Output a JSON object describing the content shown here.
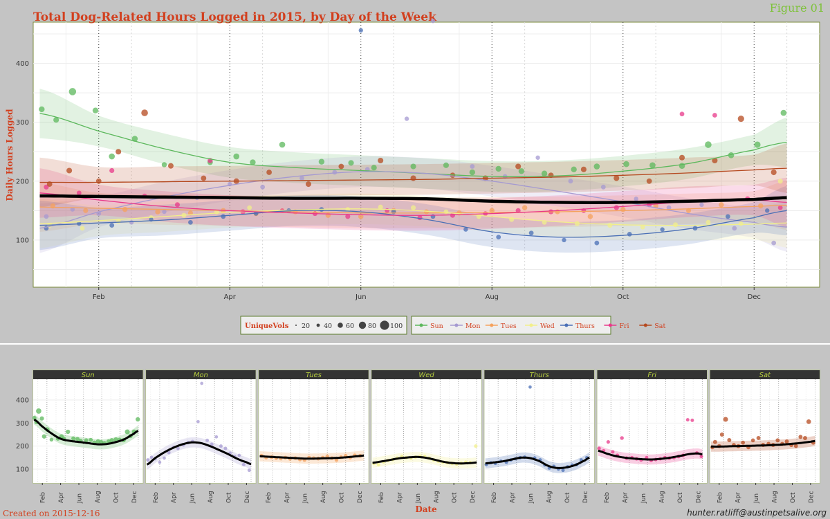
{
  "figure_label": "Figure 01",
  "footer": {
    "created": "Created on 2015-12-16",
    "contact": "hunter.ratliff@austinpetsalive.org"
  },
  "colors": {
    "page_bg": "#c4c4c4",
    "panel_bg": "#ffffff",
    "panel_border": "#7a8a3a",
    "title_red": "#d2401f",
    "figure_label_green": "#7ec23a",
    "strip_bg": "#333333",
    "strip_text": "#b5cc3e",
    "overall_line": "#000000"
  },
  "chart_data": [
    {
      "type": "scatter",
      "title": "Total Dog-Related Hours Logged in 2015, by Day of the Week",
      "ylabel": "Daily Hours Logged",
      "xlabel": "",
      "x_ticks": [
        "Feb",
        "Apr",
        "Jun",
        "Aug",
        "Oct",
        "Dec"
      ],
      "x_tick_values": [
        1.5,
        3.5,
        5.5,
        7.5,
        9.5,
        11.5
      ],
      "xlim": [
        0.5,
        12.5
      ],
      "y_ticks": [
        100,
        200,
        300,
        400
      ],
      "ylim": [
        20,
        470
      ],
      "grid": true,
      "size_legend": {
        "title": "UniqueVols",
        "entries": [
          "20",
          "40",
          "60",
          "80",
          "100"
        ]
      },
      "color_legend": {
        "placement": "bottom"
      },
      "series": [
        {
          "name": "Sun",
          "color": "#5cb85c",
          "x": [
            0.63,
            0.85,
            1.1,
            1.45,
            1.7,
            2.05,
            2.5,
            3.2,
            3.6,
            3.85,
            4.3,
            4.9,
            5.35,
            5.7,
            6.3,
            6.8,
            7.2,
            7.6,
            7.95,
            8.3,
            8.75,
            9.1,
            9.55,
            9.95,
            10.4,
            10.8,
            11.15,
            11.55,
            11.95
          ],
          "y": [
            322,
            304,
            352,
            320,
            242,
            272,
            228,
            232,
            242,
            232,
            262,
            233,
            231,
            223,
            225,
            227,
            215,
            221,
            217,
            213,
            220,
            225,
            229,
            227,
            226,
            262,
            244,
            262,
            316
          ],
          "vols": [
            55,
            50,
            100,
            55,
            60,
            60,
            40,
            45,
            60,
            55,
            60,
            55,
            50,
            50,
            50,
            50,
            55,
            55,
            55,
            55,
            55,
            60,
            60,
            60,
            60,
            80,
            60,
            70,
            60
          ],
          "fit_x": [
            0.6,
            1.5,
            2.5,
            3.5,
            4.5,
            5.5,
            6.5,
            7.5,
            8.5,
            9.5,
            10.5,
            11.5,
            12.0
          ],
          "fit_y": [
            315,
            285,
            255,
            232,
            223,
            218,
            213,
            208,
            209,
            217,
            230,
            253,
            266
          ]
        },
        {
          "name": "Mon",
          "color": "#a59ad1",
          "x": [
            0.7,
            1.1,
            1.5,
            2.0,
            2.5,
            3.0,
            3.5,
            4.0,
            4.6,
            5.1,
            5.6,
            6.2,
            6.6,
            7.2,
            7.7,
            8.2,
            8.7,
            9.2,
            9.7,
            10.2,
            10.7,
            11.2,
            11.8
          ],
          "y": [
            140,
            152,
            145,
            130,
            148,
            172,
            195,
            190,
            205,
            215,
            220,
            306,
            472,
            225,
            208,
            240,
            200,
            190,
            170,
            155,
            160,
            120,
            95
          ],
          "vols": [
            30,
            25,
            30,
            25,
            25,
            30,
            25,
            30,
            30,
            30,
            30,
            25,
            25,
            30,
            30,
            25,
            30,
            30,
            25,
            30,
            25,
            30,
            30
          ],
          "fit_x": [
            0.6,
            1.5,
            2.5,
            3.5,
            4.5,
            5.5,
            6.5,
            7.5,
            8.5,
            9.5,
            10.5,
            11.5,
            12.0
          ],
          "fit_y": [
            120,
            148,
            173,
            193,
            208,
            216,
            213,
            200,
            183,
            165,
            145,
            130,
            122
          ]
        },
        {
          "name": "Tues",
          "color": "#f5a25d",
          "x": [
            0.8,
            1.3,
            1.9,
            2.4,
            2.9,
            3.4,
            3.9,
            4.5,
            5.0,
            5.5,
            6.0,
            6.5,
            7.0,
            7.5,
            8.0,
            8.5,
            9.0,
            9.5,
            10.0,
            10.5,
            11.0,
            11.6
          ],
          "y": [
            158,
            150,
            152,
            148,
            146,
            150,
            145,
            148,
            142,
            140,
            150,
            148,
            146,
            150,
            155,
            148,
            140,
            152,
            158,
            150,
            160,
            158
          ],
          "vols": [
            40,
            35,
            40,
            40,
            35,
            40,
            40,
            35,
            40,
            40,
            40,
            35,
            40,
            40,
            40,
            35,
            40,
            40,
            40,
            35,
            40,
            40
          ],
          "fit_x": [
            0.6,
            1.5,
            2.5,
            3.5,
            4.5,
            5.5,
            6.5,
            7.5,
            8.5,
            9.5,
            10.5,
            11.5,
            12.0
          ],
          "fit_y": [
            156,
            154,
            152,
            150,
            148,
            146,
            146,
            147,
            148,
            150,
            153,
            157,
            159
          ]
        },
        {
          "name": "Wed",
          "color": "#f2ef8a",
          "x": [
            0.75,
            1.25,
            1.8,
            2.3,
            2.8,
            3.3,
            3.8,
            4.3,
            4.8,
            5.3,
            5.8,
            6.3,
            6.8,
            7.3,
            7.8,
            8.3,
            8.8,
            9.3,
            9.8,
            10.3,
            10.8,
            11.3,
            11.9
          ],
          "y": [
            125,
            120,
            132,
            138,
            142,
            148,
            155,
            150,
            148,
            152,
            156,
            155,
            148,
            140,
            135,
            130,
            128,
            125,
            122,
            126,
            130,
            128,
            200
          ],
          "vols": [
            35,
            30,
            35,
            30,
            35,
            35,
            30,
            35,
            35,
            30,
            35,
            35,
            30,
            35,
            35,
            30,
            35,
            35,
            30,
            35,
            35,
            30,
            35
          ],
          "fit_x": [
            0.6,
            1.5,
            2.5,
            3.5,
            4.5,
            5.5,
            6.5,
            7.5,
            8.5,
            9.5,
            10.5,
            11.5,
            12.0
          ],
          "fit_y": [
            128,
            133,
            140,
            147,
            151,
            153,
            149,
            140,
            131,
            126,
            125,
            127,
            129
          ]
        },
        {
          "name": "Thurs",
          "color": "#4a6fb5",
          "x": [
            0.7,
            1.2,
            1.7,
            2.3,
            2.9,
            3.4,
            3.9,
            4.4,
            4.9,
            5.5,
            6.0,
            6.6,
            7.1,
            7.6,
            8.1,
            8.6,
            9.1,
            9.6,
            10.1,
            10.6,
            11.1,
            11.7
          ],
          "y": [
            120,
            128,
            125,
            135,
            130,
            140,
            145,
            150,
            152,
            456,
            148,
            140,
            118,
            105,
            112,
            100,
            95,
            110,
            118,
            120,
            140,
            150
          ],
          "vols": [
            30,
            25,
            30,
            25,
            30,
            30,
            25,
            30,
            30,
            25,
            30,
            30,
            25,
            30,
            30,
            25,
            30,
            30,
            25,
            30,
            30,
            25
          ],
          "fit_x": [
            0.6,
            1.5,
            2.5,
            3.5,
            4.5,
            5.5,
            6.5,
            7.5,
            8.5,
            9.5,
            10.5,
            11.5,
            12.0
          ],
          "fit_y": [
            125,
            129,
            134,
            142,
            150,
            148,
            135,
            114,
            105,
            108,
            119,
            138,
            150
          ]
        },
        {
          "name": "Fri",
          "color": "#e8388a",
          "x": [
            0.7,
            1.2,
            1.7,
            2.2,
            2.7,
            3.2,
            3.7,
            4.3,
            4.8,
            5.3,
            5.9,
            6.4,
            6.9,
            7.4,
            7.9,
            8.4,
            8.9,
            9.4,
            9.9,
            10.4,
            10.9,
            11.4,
            11.9
          ],
          "y": [
            190,
            180,
            218,
            175,
            160,
            235,
            148,
            150,
            145,
            140,
            150,
            138,
            142,
            145,
            150,
            148,
            150,
            155,
            160,
            314,
            312,
            170,
            155
          ],
          "vols": [
            35,
            30,
            35,
            30,
            35,
            40,
            35,
            30,
            35,
            35,
            30,
            35,
            35,
            30,
            35,
            35,
            30,
            35,
            35,
            30,
            30,
            35,
            30
          ],
          "fit_x": [
            0.6,
            1.5,
            2.5,
            3.5,
            4.5,
            5.5,
            6.5,
            7.5,
            8.5,
            9.5,
            10.5,
            11.5,
            12.0
          ],
          "fit_y": [
            180,
            168,
            157,
            150,
            146,
            143,
            142,
            145,
            150,
            157,
            165,
            168,
            164
          ]
        },
        {
          "name": "Sat",
          "color": "#b5491f",
          "x": [
            0.75,
            1.05,
            1.5,
            1.8,
            2.2,
            2.6,
            3.1,
            3.6,
            4.1,
            4.7,
            5.2,
            5.8,
            6.3,
            6.9,
            7.4,
            7.9,
            8.4,
            8.9,
            9.4,
            9.9,
            10.4,
            10.9,
            11.3,
            11.8
          ],
          "y": [
            195,
            218,
            200,
            250,
            316,
            226,
            205,
            200,
            215,
            195,
            225,
            235,
            205,
            210,
            205,
            225,
            210,
            220,
            205,
            200,
            240,
            235,
            306,
            215
          ],
          "vols": [
            45,
            50,
            45,
            50,
            80,
            50,
            45,
            50,
            45,
            50,
            45,
            50,
            50,
            45,
            50,
            50,
            45,
            50,
            50,
            45,
            50,
            50,
            70,
            50
          ],
          "fit_x": [
            0.6,
            1.5,
            2.5,
            3.5,
            4.5,
            5.5,
            6.5,
            7.5,
            8.5,
            9.5,
            10.5,
            11.5,
            12.0
          ],
          "fit_y": [
            198,
            198,
            199,
            200,
            201,
            202,
            203,
            205,
            207,
            210,
            214,
            219,
            222
          ]
        }
      ],
      "overall_fit": {
        "x": [
          0.6,
          1.5,
          2.5,
          3.5,
          4.5,
          5.5,
          6.5,
          7.5,
          8.5,
          9.5,
          10.5,
          11.5,
          12.0
        ],
        "y": [
          175,
          174,
          173,
          172,
          171,
          171,
          170,
          166,
          164,
          164,
          166,
          169,
          172
        ]
      }
    },
    {
      "type": "scatter",
      "layout": "facets",
      "xlabel": "Date",
      "ylabel": "",
      "facet_titles": [
        "Sun",
        "Mon",
        "Tues",
        "Wed",
        "Thurs",
        "Fri",
        "Sat"
      ],
      "x_ticks": [
        "Feb",
        "Apr",
        "Jun",
        "Aug",
        "Oct",
        "Dec"
      ],
      "y_ticks": [
        100,
        200,
        300,
        400
      ],
      "ylim": [
        40,
        490
      ],
      "xlim": [
        0.5,
        12.5
      ],
      "note": "each facet reuses the matching series and its black smooth fit"
    }
  ]
}
